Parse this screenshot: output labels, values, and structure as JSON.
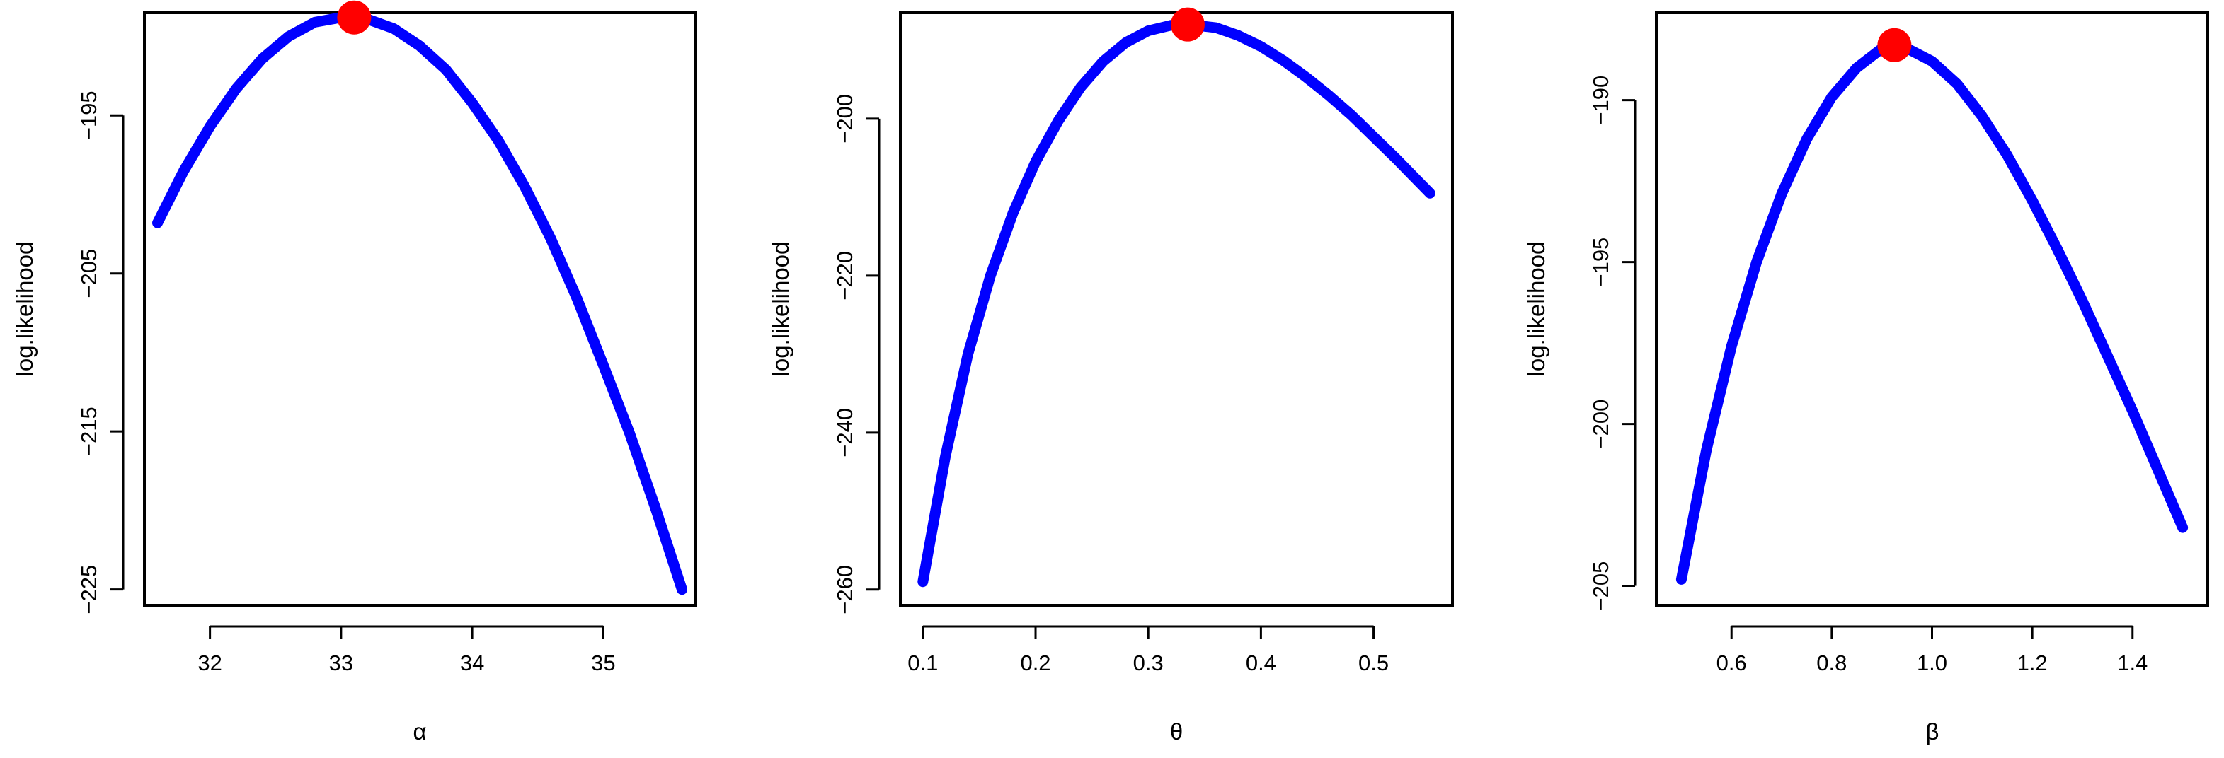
{
  "chart_data": [
    {
      "type": "line",
      "xlabel": "α",
      "ylabel": "log.likelihood",
      "xlim": [
        31.5,
        35.7
      ],
      "ylim": [
        -226,
        -188.5
      ],
      "xticks": [
        32,
        33,
        34,
        35
      ],
      "yticks": [
        -195,
        -205,
        -215,
        -225
      ],
      "grid": false,
      "series": [
        {
          "color": "#0000ff",
          "x": [
            31.6,
            31.8,
            32.0,
            32.2,
            32.4,
            32.6,
            32.8,
            33.0,
            33.1,
            33.2,
            33.4,
            33.6,
            33.8,
            34.0,
            34.2,
            34.4,
            34.6,
            34.8,
            35.0,
            35.2,
            35.4,
            35.6
          ],
          "y": [
            -201.8,
            -198.5,
            -195.7,
            -193.3,
            -191.4,
            -190.0,
            -189.1,
            -188.8,
            -188.8,
            -188.9,
            -189.5,
            -190.6,
            -192.1,
            -194.2,
            -196.6,
            -199.5,
            -202.8,
            -206.6,
            -210.8,
            -215.1,
            -219.9,
            -225.0
          ]
        }
      ],
      "highlight": {
        "x": 33.1,
        "y": -188.8,
        "color": "#ff0000"
      }
    },
    {
      "type": "line",
      "xlabel": "θ",
      "ylabel": "log.likelihood",
      "xlim": [
        0.08,
        0.57
      ],
      "ylim": [
        -262,
        -186.5
      ],
      "xticks": [
        "0.1",
        "0.2",
        "0.3",
        "0.4",
        "0.5"
      ],
      "yticks": [
        -200,
        -220,
        -240,
        -260
      ],
      "grid": false,
      "series": [
        {
          "color": "#0000ff",
          "x": [
            0.1,
            0.12,
            0.14,
            0.16,
            0.18,
            0.2,
            0.22,
            0.24,
            0.26,
            0.28,
            0.3,
            0.32,
            0.335,
            0.36,
            0.38,
            0.4,
            0.42,
            0.44,
            0.46,
            0.48,
            0.5,
            0.52,
            0.55
          ],
          "y": [
            -259.0,
            -243.0,
            -230.0,
            -220.0,
            -212.0,
            -205.5,
            -200.3,
            -196.0,
            -192.7,
            -190.3,
            -188.8,
            -188.1,
            -188.0,
            -188.4,
            -189.4,
            -190.8,
            -192.6,
            -194.7,
            -197.0,
            -199.5,
            -202.3,
            -205.1,
            -209.5
          ]
        }
      ],
      "highlight": {
        "x": 0.335,
        "y": -188.0,
        "color": "#ff0000"
      }
    },
    {
      "type": "line",
      "xlabel": "β",
      "ylabel": "log.likelihood",
      "xlim": [
        0.45,
        1.55
      ],
      "ylim": [
        -205.6,
        -187.3
      ],
      "xticks": [
        "0.6",
        "0.8",
        "1.0",
        "1.2",
        "1.4"
      ],
      "yticks": [
        -190,
        -195,
        -200,
        -205
      ],
      "grid": false,
      "series": [
        {
          "color": "#0000ff",
          "x": [
            0.5,
            0.55,
            0.6,
            0.65,
            0.7,
            0.75,
            0.8,
            0.85,
            0.9,
            0.925,
            0.95,
            1.0,
            1.05,
            1.1,
            1.15,
            1.2,
            1.25,
            1.3,
            1.35,
            1.4,
            1.45,
            1.5
          ],
          "y": [
            -204.8,
            -200.8,
            -197.6,
            -195.0,
            -192.9,
            -191.2,
            -189.9,
            -189.0,
            -188.4,
            -188.3,
            -188.4,
            -188.8,
            -189.5,
            -190.5,
            -191.7,
            -193.1,
            -194.6,
            -196.2,
            -197.9,
            -199.6,
            -201.4,
            -203.2
          ]
        }
      ],
      "highlight": {
        "x": 0.925,
        "y": -188.3,
        "color": "#ff0000"
      }
    }
  ]
}
